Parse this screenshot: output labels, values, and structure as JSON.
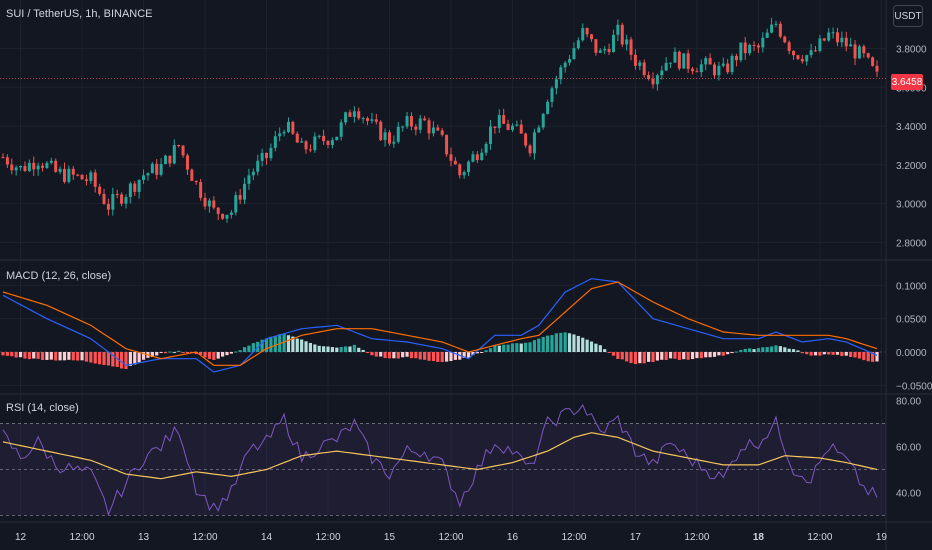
{
  "header": {
    "symbol_title": "SUI / TetherUS, 1h, BINANCE",
    "currency_button": "USDT"
  },
  "price_tag": {
    "value": "3.6458",
    "color": "#f23645"
  },
  "colors": {
    "up": "#26a69a",
    "down": "#ef5350",
    "macd_line": "#2962ff",
    "signal_line": "#ff6d00",
    "hist_up_strong": "#26a69a",
    "hist_up_weak": "#b2dfdb",
    "hist_down_strong": "#ff5252",
    "hist_down_weak": "#ffcdd2",
    "rsi_line": "#7e57c2",
    "rsi_ma": "#f7c55c",
    "background": "#131722",
    "grid": "#1e222d",
    "axis_text": "#b2b5be"
  },
  "chart_data": [
    {
      "type": "candlestick",
      "title": "SUI / TetherUS, 1h, BINANCE",
      "y_ticks": [
        "2.8000",
        "3.0000",
        "3.2000",
        "3.4000",
        "3.6000",
        "3.8000"
      ],
      "ylim": [
        2.72,
        4.05
      ],
      "last_price": 3.6458,
      "close_path": [
        [
          0,
          3.24
        ],
        [
          4,
          3.18
        ],
        [
          8,
          3.23
        ],
        [
          12,
          3.16
        ],
        [
          16,
          3.14
        ],
        [
          20,
          3.12
        ],
        [
          24,
          2.99
        ],
        [
          28,
          3.06
        ],
        [
          32,
          3.15
        ],
        [
          36,
          3.19
        ],
        [
          40,
          3.3
        ],
        [
          44,
          3.1
        ],
        [
          48,
          2.96
        ],
        [
          52,
          2.96
        ],
        [
          56,
          3.15
        ],
        [
          60,
          3.24
        ],
        [
          64,
          3.41
        ],
        [
          68,
          3.28
        ],
        [
          72,
          3.32
        ],
        [
          76,
          3.36
        ],
        [
          80,
          3.51
        ],
        [
          84,
          3.4
        ],
        [
          88,
          3.33
        ],
        [
          92,
          3.41
        ],
        [
          96,
          3.42
        ],
        [
          100,
          3.32
        ],
        [
          104,
          3.15
        ],
        [
          108,
          3.27
        ],
        [
          112,
          3.42
        ],
        [
          116,
          3.39
        ],
        [
          120,
          3.3
        ],
        [
          124,
          3.56
        ],
        [
          128,
          3.73
        ],
        [
          132,
          3.88
        ],
        [
          136,
          3.77
        ],
        [
          140,
          3.88
        ],
        [
          144,
          3.74
        ],
        [
          148,
          3.66
        ],
        [
          152,
          3.76
        ],
        [
          156,
          3.72
        ],
        [
          160,
          3.71
        ],
        [
          164,
          3.68
        ],
        [
          168,
          3.79
        ],
        [
          172,
          3.8
        ],
        [
          176,
          3.93
        ],
        [
          180,
          3.78
        ],
        [
          184,
          3.76
        ],
        [
          188,
          3.87
        ],
        [
          192,
          3.82
        ],
        [
          196,
          3.75
        ],
        [
          199,
          3.65
        ]
      ]
    },
    {
      "type": "line",
      "title": "MACD (12, 26, close)",
      "y_ticks": [
        "0.1000",
        "0.0500",
        "0.0000",
        "−0.0500"
      ],
      "ylim": [
        -0.06,
        0.135
      ],
      "series": [
        {
          "name": "MACD",
          "points": [
            [
              0,
              0.085
            ],
            [
              10,
              0.05
            ],
            [
              20,
              0.02
            ],
            [
              28,
              -0.02
            ],
            [
              36,
              -0.01
            ],
            [
              44,
              -0.01
            ],
            [
              48,
              -0.03
            ],
            [
              54,
              -0.02
            ],
            [
              60,
              0.02
            ],
            [
              68,
              0.035
            ],
            [
              76,
              0.04
            ],
            [
              84,
              0.02
            ],
            [
              92,
              0.015
            ],
            [
              100,
              0.005
            ],
            [
              106,
              -0.01
            ],
            [
              112,
              0.025
            ],
            [
              118,
              0.025
            ],
            [
              122,
              0.04
            ],
            [
              128,
              0.09
            ],
            [
              134,
              0.11
            ],
            [
              140,
              0.105
            ],
            [
              148,
              0.05
            ],
            [
              156,
              0.035
            ],
            [
              164,
              0.02
            ],
            [
              172,
              0.02
            ],
            [
              176,
              0.03
            ],
            [
              182,
              0.015
            ],
            [
              188,
              0.02
            ],
            [
              192,
              0.015
            ],
            [
              199,
              -0.005
            ]
          ]
        },
        {
          "name": "Signal",
          "points": [
            [
              0,
              0.09
            ],
            [
              10,
              0.07
            ],
            [
              20,
              0.04
            ],
            [
              28,
              0.005
            ],
            [
              36,
              -0.01
            ],
            [
              44,
              0.0
            ],
            [
              48,
              -0.02
            ],
            [
              54,
              -0.02
            ],
            [
              60,
              0.005
            ],
            [
              68,
              0.025
            ],
            [
              76,
              0.035
            ],
            [
              84,
              0.035
            ],
            [
              92,
              0.025
            ],
            [
              100,
              0.015
            ],
            [
              106,
              0.0
            ],
            [
              112,
              0.01
            ],
            [
              118,
              0.02
            ],
            [
              122,
              0.025
            ],
            [
              128,
              0.06
            ],
            [
              134,
              0.095
            ],
            [
              140,
              0.105
            ],
            [
              148,
              0.075
            ],
            [
              156,
              0.05
            ],
            [
              164,
              0.03
            ],
            [
              172,
              0.025
            ],
            [
              176,
              0.025
            ],
            [
              182,
              0.025
            ],
            [
              188,
              0.025
            ],
            [
              192,
              0.02
            ],
            [
              199,
              0.005
            ]
          ]
        }
      ],
      "histogram": [
        [
          0,
          -0.005
        ],
        [
          6,
          -0.01
        ],
        [
          12,
          -0.012
        ],
        [
          18,
          -0.013
        ],
        [
          24,
          -0.02
        ],
        [
          28,
          -0.025
        ],
        [
          32,
          -0.012
        ],
        [
          36,
          -0.002
        ],
        [
          40,
          0.002
        ],
        [
          44,
          -0.003
        ],
        [
          48,
          -0.012
        ],
        [
          52,
          -0.003
        ],
        [
          56,
          0.01
        ],
        [
          60,
          0.02
        ],
        [
          64,
          0.028
        ],
        [
          68,
          0.018
        ],
        [
          72,
          0.01
        ],
        [
          76,
          0.006
        ],
        [
          80,
          0.01
        ],
        [
          84,
          -0.005
        ],
        [
          88,
          -0.01
        ],
        [
          92,
          -0.008
        ],
        [
          96,
          -0.012
        ],
        [
          100,
          -0.015
        ],
        [
          104,
          -0.012
        ],
        [
          108,
          -0.003
        ],
        [
          112,
          0.01
        ],
        [
          116,
          0.012
        ],
        [
          120,
          0.015
        ],
        [
          124,
          0.025
        ],
        [
          128,
          0.03
        ],
        [
          132,
          0.022
        ],
        [
          136,
          0.01
        ],
        [
          140,
          -0.01
        ],
        [
          144,
          -0.018
        ],
        [
          148,
          -0.015
        ],
        [
          152,
          -0.01
        ],
        [
          156,
          -0.012
        ],
        [
          160,
          -0.008
        ],
        [
          164,
          -0.005
        ],
        [
          168,
          0.003
        ],
        [
          172,
          0.006
        ],
        [
          176,
          0.01
        ],
        [
          180,
          0.004
        ],
        [
          184,
          -0.006
        ],
        [
          188,
          -0.003
        ],
        [
          192,
          -0.006
        ],
        [
          196,
          -0.012
        ],
        [
          199,
          -0.015
        ]
      ]
    },
    {
      "type": "line",
      "title": "RSI (14, close)",
      "y_ticks": [
        "80.00",
        "60.00",
        "40.00"
      ],
      "ylim": [
        28,
        82
      ],
      "bands": [
        70,
        50,
        30
      ],
      "series": [
        {
          "name": "RSI",
          "points": [
            [
              0,
              65
            ],
            [
              4,
              55
            ],
            [
              8,
              62
            ],
            [
              12,
              52
            ],
            [
              16,
              50
            ],
            [
              20,
              48
            ],
            [
              24,
              32
            ],
            [
              28,
              44
            ],
            [
              32,
              55
            ],
            [
              36,
              60
            ],
            [
              40,
              68
            ],
            [
              44,
              42
            ],
            [
              48,
              33
            ],
            [
              52,
              40
            ],
            [
              56,
              58
            ],
            [
              60,
              62
            ],
            [
              64,
              72
            ],
            [
              68,
              55
            ],
            [
              72,
              60
            ],
            [
              76,
              63
            ],
            [
              80,
              70
            ],
            [
              84,
              55
            ],
            [
              88,
              48
            ],
            [
              92,
              58
            ],
            [
              96,
              58
            ],
            [
              100,
              52
            ],
            [
              104,
              36
            ],
            [
              108,
              50
            ],
            [
              112,
              62
            ],
            [
              116,
              58
            ],
            [
              120,
              50
            ],
            [
              124,
              70
            ],
            [
              128,
              74
            ],
            [
              132,
              78
            ],
            [
              136,
              66
            ],
            [
              140,
              72
            ],
            [
              144,
              58
            ],
            [
              148,
              52
            ],
            [
              152,
              62
            ],
            [
              156,
              55
            ],
            [
              160,
              50
            ],
            [
              164,
              46
            ],
            [
              168,
              60
            ],
            [
              172,
              62
            ],
            [
              176,
              70
            ],
            [
              180,
              50
            ],
            [
              184,
              46
            ],
            [
              188,
              60
            ],
            [
              192,
              54
            ],
            [
              196,
              42
            ],
            [
              199,
              38
            ]
          ]
        },
        {
          "name": "RSI MA",
          "points": [
            [
              0,
              62
            ],
            [
              10,
              58
            ],
            [
              20,
              54
            ],
            [
              28,
              48
            ],
            [
              36,
              46
            ],
            [
              44,
              49
            ],
            [
              52,
              47
            ],
            [
              60,
              50
            ],
            [
              68,
              56
            ],
            [
              76,
              58
            ],
            [
              84,
              56
            ],
            [
              92,
              54
            ],
            [
              100,
              52
            ],
            [
              108,
              50
            ],
            [
              116,
              53
            ],
            [
              124,
              58
            ],
            [
              130,
              64
            ],
            [
              134,
              66
            ],
            [
              140,
              64
            ],
            [
              148,
              58
            ],
            [
              156,
              55
            ],
            [
              164,
              52
            ],
            [
              172,
              52
            ],
            [
              178,
              56
            ],
            [
              186,
              55
            ],
            [
              192,
              53
            ],
            [
              199,
              50
            ]
          ]
        }
      ]
    }
  ],
  "x_axis": {
    "labels": [
      "12",
      "12:00",
      "13",
      "12:00",
      "14",
      "12:00",
      "15",
      "12:00",
      "16",
      "12:00",
      "17",
      "12:00",
      "18",
      "12:00",
      "19"
    ],
    "bold": [
      "18"
    ]
  }
}
